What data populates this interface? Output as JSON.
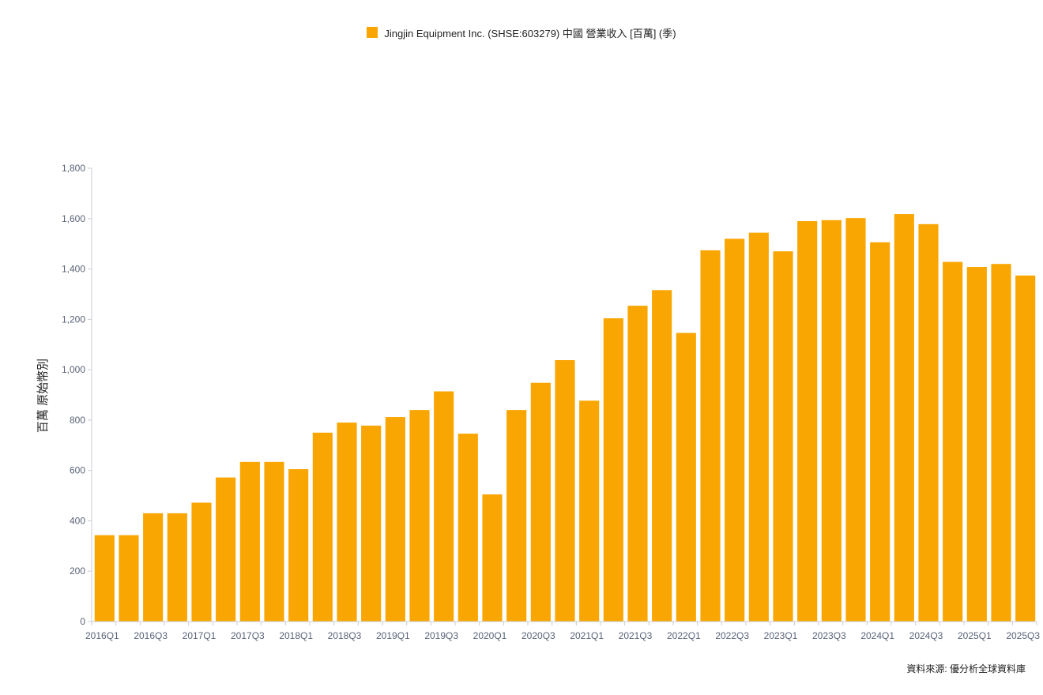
{
  "legend": {
    "label": "Jingjin Equipment Inc. (SHSE:603279) 中國 營業收入 [百萬] (季)",
    "color": "#f9a602"
  },
  "source": "資料來源: 優分析全球資料庫",
  "chart_data": {
    "type": "bar",
    "ylabel": "百萬 原始幣別",
    "ylim": [
      0,
      1800
    ],
    "yticks": [
      0,
      200,
      400,
      600,
      800,
      1000,
      1200,
      1400,
      1600,
      1800
    ],
    "ytick_labels": [
      "0",
      "200",
      "400",
      "600",
      "800",
      "1,000",
      "1,200",
      "1,400",
      "1,600",
      "1,800"
    ],
    "categories": [
      "2016Q1",
      "2016Q2",
      "2016Q3",
      "2016Q4",
      "2017Q1",
      "2017Q2",
      "2017Q3",
      "2017Q4",
      "2018Q1",
      "2018Q2",
      "2018Q3",
      "2018Q4",
      "2019Q1",
      "2019Q2",
      "2019Q3",
      "2019Q4",
      "2020Q1",
      "2020Q2",
      "2020Q3",
      "2020Q4",
      "2021Q1",
      "2021Q2",
      "2021Q3",
      "2021Q4",
      "2022Q1",
      "2022Q2",
      "2022Q3",
      "2022Q4",
      "2023Q1",
      "2023Q2",
      "2023Q3",
      "2023Q4",
      "2024Q1",
      "2024Q2",
      "2024Q3",
      "2024Q4",
      "2025Q1",
      "2025Q2",
      "2025Q3"
    ],
    "xtick_labels": [
      "2016Q1",
      "2016Q3",
      "2017Q1",
      "2017Q3",
      "2018Q1",
      "2018Q3",
      "2019Q1",
      "2019Q3",
      "2020Q1",
      "2020Q3",
      "2021Q1",
      "2021Q3",
      "2022Q1",
      "2022Q3",
      "2023Q1",
      "2023Q3",
      "2024Q1",
      "2024Q3",
      "2025Q1",
      "2025Q3"
    ],
    "series": [
      {
        "name": "Jingjin Equipment Inc. (SHSE:603279) 中國 營業收入 [百萬] (季)",
        "color": "#f9a602",
        "values": [
          343,
          343,
          430,
          430,
          472,
          572,
          634,
          634,
          605,
          750,
          790,
          778,
          812,
          840,
          914,
          746,
          505,
          840,
          948,
          1038,
          877,
          1204,
          1254,
          1316,
          1146,
          1474,
          1520,
          1544,
          1470,
          1590,
          1594,
          1602,
          1506,
          1618,
          1578,
          1428,
          1408,
          1420,
          1374
        ]
      }
    ],
    "grid": false,
    "legend_position": "top-center"
  }
}
